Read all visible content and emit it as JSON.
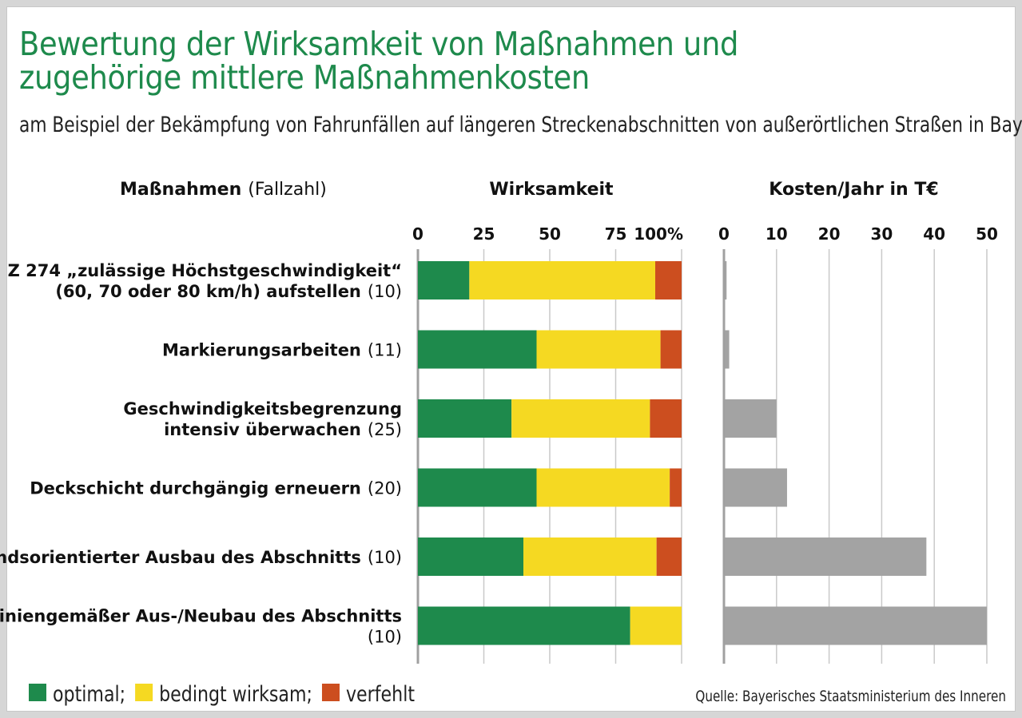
{
  "title": "Bewertung der Wirksamkeit von Maßnahmen und zugehörige mittlere Maßnahmenkosten",
  "subtitle": "am Beispiel der Bekämpfung von Fahrunfällen auf längeren Streckenabschnitten von außerörtlichen Straßen in Bayern",
  "colors": {
    "optimal": "#1e8a4c",
    "bedingt": "#f5d922",
    "verfehlt": "#cc4e1f",
    "kosten": "#a3a3a3",
    "grid": "#c9c9c9",
    "axis": "#a0a0a0",
    "title": "#1e8a4c"
  },
  "chart_data": [
    {
      "type": "bar",
      "orientation": "horizontal",
      "stacked": true,
      "header_bold": "Maßnahmen",
      "header_light": "(Fallzahl)",
      "title": "Wirksamkeit",
      "categories": [
        {
          "lines": [
            {
              "bold": "Z 274 „zulässige Höchstgeschwindigkeit“",
              "light": ""
            },
            {
              "bold": "(60, 70 oder 80 km/h) aufstellen",
              "light": "(10)"
            }
          ]
        },
        {
          "lines": [
            {
              "bold": "Markierungsarbeiten",
              "light": "(11)"
            }
          ]
        },
        {
          "lines": [
            {
              "bold": "Geschwindigkeitsbegrenzung",
              "light": ""
            },
            {
              "bold": "intensiv überwachen",
              "light": "(25)"
            }
          ]
        },
        {
          "lines": [
            {
              "bold": "Deckschicht durchgängig erneuern",
              "light": "(20)"
            }
          ]
        },
        {
          "lines": [
            {
              "bold": "Bestandsorientierter Ausbau des Abschnitts",
              "light": "(10)"
            }
          ]
        },
        {
          "lines": [
            {
              "bold": "Richtliniengemäßer Aus-/Neubau des Abschnitts",
              "light": ""
            },
            {
              "bold": "",
              "light": "(10)"
            }
          ]
        }
      ],
      "series": [
        {
          "key": "optimal",
          "name": "optimal",
          "values": [
            19.5,
            45,
            35.5,
            45,
            40,
            80.5
          ]
        },
        {
          "key": "bedingt",
          "name": "bedingt wirksam",
          "values": [
            70.5,
            47,
            52.5,
            50.5,
            50.5,
            19.5
          ]
        },
        {
          "key": "verfehlt",
          "name": "verfehlt",
          "values": [
            10,
            8,
            12,
            4.5,
            9.5,
            0
          ]
        }
      ],
      "xlim": [
        0,
        100
      ],
      "ticks": [
        "0",
        "25",
        "50",
        "75",
        "100%"
      ],
      "tick_values": [
        0,
        25,
        50,
        75,
        100
      ],
      "grid": true
    },
    {
      "type": "bar",
      "orientation": "horizontal",
      "title": "Kosten/Jahr in T€",
      "series": [
        {
          "key": "kosten",
          "name": "",
          "values": [
            0.5,
            1,
            10,
            12,
            38.5,
            50
          ]
        }
      ],
      "xlim": [
        0,
        50
      ],
      "ticks": [
        "0",
        "10",
        "20",
        "30",
        "40",
        "50"
      ],
      "tick_values": [
        0,
        10,
        20,
        30,
        40,
        50
      ],
      "grid": true
    }
  ],
  "legend": {
    "placement": "bottom-left",
    "items": [
      {
        "key": "optimal",
        "label": "optimal;"
      },
      {
        "key": "bedingt",
        "label": "bedingt wirksam;"
      },
      {
        "key": "verfehlt",
        "label": "verfehlt"
      }
    ]
  },
  "source": "Quelle: Bayerisches Staatsministerium des Inneren"
}
